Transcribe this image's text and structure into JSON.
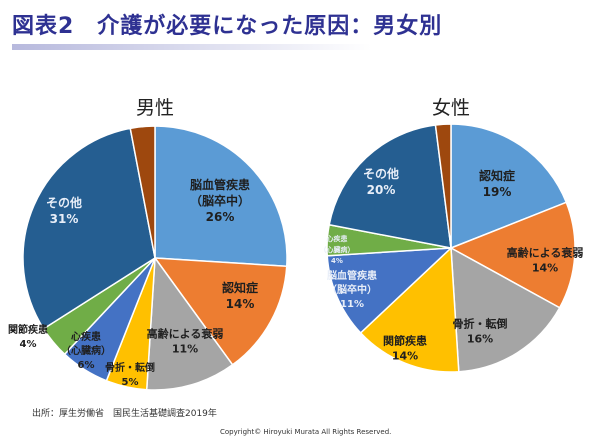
{
  "title": "図表2　介護が必要になった原因：男女別",
  "source": "出所：厚生労働省　国民生活基礎調査2019年",
  "copyright": "Copyright© Hiroyuki Murata All Rights Reserved.",
  "chart_data": [
    {
      "type": "pie",
      "title": "男性",
      "slices": [
        {
          "label": "脳血管疾患（脳卒中）",
          "value": 26,
          "value_label": "26%",
          "color": "#5b9bd5"
        },
        {
          "label": "認知症",
          "value": 14,
          "value_label": "14%",
          "color": "#ed7d31"
        },
        {
          "label": "高齢による衰弱",
          "value": 11,
          "value_label": "11%",
          "color": "#a5a5a5"
        },
        {
          "label": "骨折・転倒",
          "value": 5,
          "value_label": "5%",
          "color": "#ffc000"
        },
        {
          "label": "心疾患（心臓病）",
          "value": 6,
          "value_label": "6%",
          "color": "#4472c4"
        },
        {
          "label": "関節疾患",
          "value": 4,
          "value_label": "4%",
          "color": "#70ad47"
        },
        {
          "label": "その他",
          "value": 31,
          "value_label": "31%",
          "color": "#255e91"
        },
        {
          "label": "",
          "value": 3,
          "value_label": "",
          "color": "#9e480e"
        }
      ]
    },
    {
      "type": "pie",
      "title": "女性",
      "slices": [
        {
          "label": "認知症",
          "value": 19,
          "value_label": "19%",
          "color": "#5b9bd5"
        },
        {
          "label": "高齢による衰弱",
          "value": 14,
          "value_label": "14%",
          "color": "#ed7d31"
        },
        {
          "label": "骨折・転倒",
          "value": 16,
          "value_label": "16%",
          "color": "#a5a5a5"
        },
        {
          "label": "関節疾患",
          "value": 14,
          "value_label": "14%",
          "color": "#ffc000"
        },
        {
          "label": "脳血管疾患（脳卒中）",
          "value": 11,
          "value_label": "11%",
          "color": "#4472c4"
        },
        {
          "label": "心疾患（心臓病）",
          "value": 4,
          "value_label": "4%",
          "color": "#70ad47"
        },
        {
          "label": "その他",
          "value": 20,
          "value_label": "20%",
          "color": "#255e91"
        },
        {
          "label": "",
          "value": 2,
          "value_label": "",
          "color": "#9e480e"
        }
      ]
    }
  ]
}
